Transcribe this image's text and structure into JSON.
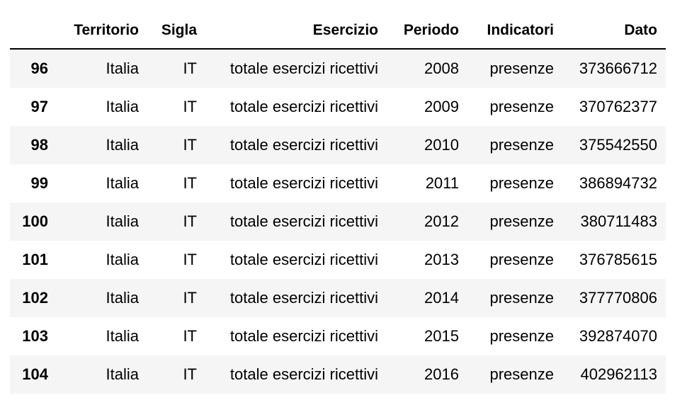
{
  "table": {
    "columns": [
      "",
      "Territorio",
      "Sigla",
      "Esercizio",
      "Periodo",
      "Indicatori",
      "Dato"
    ],
    "rows": [
      {
        "index": "96",
        "territorio": "Italia",
        "sigla": "IT",
        "esercizio": "totale esercizi ricettivi",
        "periodo": "2008",
        "indicatori": "presenze",
        "dato": "373666712"
      },
      {
        "index": "97",
        "territorio": "Italia",
        "sigla": "IT",
        "esercizio": "totale esercizi ricettivi",
        "periodo": "2009",
        "indicatori": "presenze",
        "dato": "370762377"
      },
      {
        "index": "98",
        "territorio": "Italia",
        "sigla": "IT",
        "esercizio": "totale esercizi ricettivi",
        "periodo": "2010",
        "indicatori": "presenze",
        "dato": "375542550"
      },
      {
        "index": "99",
        "territorio": "Italia",
        "sigla": "IT",
        "esercizio": "totale esercizi ricettivi",
        "periodo": "2011",
        "indicatori": "presenze",
        "dato": "386894732"
      },
      {
        "index": "100",
        "territorio": "Italia",
        "sigla": "IT",
        "esercizio": "totale esercizi ricettivi",
        "periodo": "2012",
        "indicatori": "presenze",
        "dato": "380711483"
      },
      {
        "index": "101",
        "territorio": "Italia",
        "sigla": "IT",
        "esercizio": "totale esercizi ricettivi",
        "periodo": "2013",
        "indicatori": "presenze",
        "dato": "376785615"
      },
      {
        "index": "102",
        "territorio": "Italia",
        "sigla": "IT",
        "esercizio": "totale esercizi ricettivi",
        "periodo": "2014",
        "indicatori": "presenze",
        "dato": "377770806"
      },
      {
        "index": "103",
        "territorio": "Italia",
        "sigla": "IT",
        "esercizio": "totale esercizi ricettivi",
        "periodo": "2015",
        "indicatori": "presenze",
        "dato": "392874070"
      },
      {
        "index": "104",
        "territorio": "Italia",
        "sigla": "IT",
        "esercizio": "totale esercizi ricettivi",
        "periodo": "2016",
        "indicatori": "presenze",
        "dato": "402962113"
      }
    ]
  },
  "colors": {
    "stripe": "#f5f5f5",
    "header_border": "#000000",
    "text": "#000000"
  }
}
